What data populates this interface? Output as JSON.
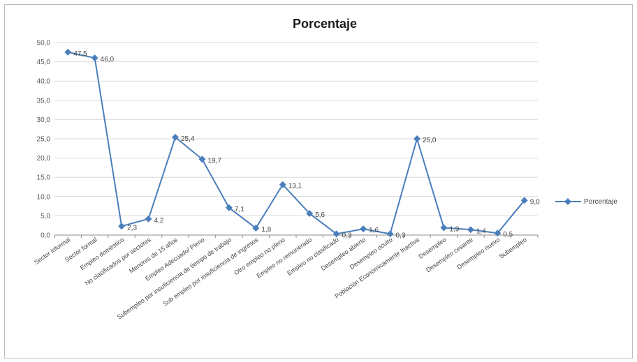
{
  "chart_data": {
    "type": "line",
    "title": "Porcentaje",
    "xlabel": "",
    "ylabel": "",
    "ylim": [
      0,
      50
    ],
    "yticks": [
      "0,0",
      "5,0",
      "10,0",
      "15,0",
      "20,0",
      "25,0",
      "30,0",
      "35,0",
      "40,0",
      "45,0",
      "50,0"
    ],
    "grid": true,
    "legend_position": "right",
    "categories": [
      "Sector informal",
      "Sector formal",
      "Empleo doméstico",
      "No clasificados por sectores",
      "Menores de 15 años",
      "Empleo Adecuado/ Pleno",
      "Subempleo por insuficiencia de tiempo de trabajo",
      "Sub empleo por insuficiencia de ingresos",
      "Otro empleo no pleno",
      "Empleo no remunerado",
      "Empleo no clasificado",
      "Desempleo abierto",
      "Desempleo oculto",
      "Población Económicamente Inactiva",
      "Desempleo",
      "Desempleo cesante",
      "Desempleo nuevo",
      "Subempleo"
    ],
    "series": [
      {
        "name": "Porcentaje",
        "color": "#4a7ebb",
        "values": [
          47.5,
          46.0,
          2.3,
          4.2,
          25.4,
          19.7,
          7.1,
          1.8,
          13.1,
          5.6,
          0.3,
          1.6,
          0.3,
          25.0,
          1.9,
          1.4,
          0.5,
          9.0
        ],
        "labels": [
          "47,5",
          "46,0",
          "2,3",
          "4,2",
          "25,4",
          "19,7",
          "7,1",
          "1,8",
          "13,1",
          "5,6",
          "0,3",
          "1,6",
          "0,3",
          "25,0",
          "1,9",
          "1,4",
          "0,5",
          "9,0"
        ]
      }
    ]
  }
}
